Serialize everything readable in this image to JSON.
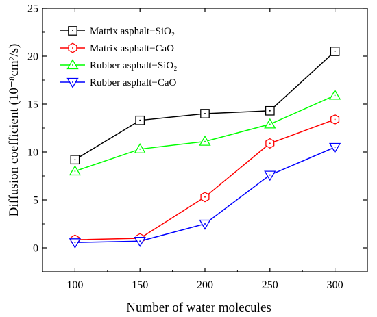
{
  "chart_data": {
    "type": "line",
    "title": "",
    "xlabel": "Number of water molecules",
    "ylabel": "Diffusion coefficient (10⁻⁸cm²/s)",
    "x": [
      100,
      150,
      200,
      250,
      300
    ],
    "xlim": [
      75,
      325
    ],
    "ylim": [
      -2.5,
      25
    ],
    "xticks": [
      "100",
      "150",
      "200",
      "250",
      "300"
    ],
    "yticks": [
      "0",
      "5",
      "10",
      "15",
      "20",
      "25"
    ],
    "legend_position": "top-left",
    "grid": false,
    "series": [
      {
        "name": "Matrix asphalt−SiO₂",
        "color": "#000000",
        "marker": "square",
        "values": [
          9.2,
          13.3,
          14.0,
          14.3,
          20.5
        ]
      },
      {
        "name": "Matrix asphalt−CaO",
        "color": "#ff0000",
        "marker": "hexagon",
        "values": [
          0.85,
          1.0,
          5.3,
          10.9,
          13.4
        ]
      },
      {
        "name": "Rubber asphalt−SiO₂",
        "color": "#00ff00",
        "marker": "triangle-up",
        "values": [
          8.0,
          10.3,
          11.1,
          12.9,
          15.9
        ]
      },
      {
        "name": "Rubber asphalt−CaO",
        "color": "#0000ff",
        "marker": "triangle-down",
        "values": [
          0.55,
          0.7,
          2.5,
          7.6,
          10.5
        ]
      }
    ]
  }
}
